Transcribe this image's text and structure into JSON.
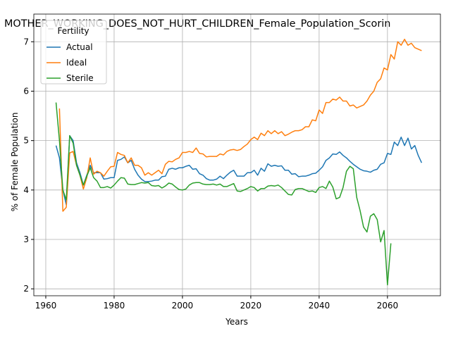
{
  "chart_data": {
    "type": "line",
    "title": "MOTHER_WORKING_DOES_NOT_HURT_CHILDREN_Female_Population_Scorin",
    "xlabel": "Years",
    "ylabel": "% of Female Population",
    "legend_title": "Fertility",
    "legend": "upper left",
    "grid": true,
    "x": [
      1963,
      1964,
      1965,
      1966,
      1967,
      1968,
      1969,
      1970,
      1971,
      1972,
      1973,
      1974,
      1975,
      1976,
      1977,
      1978,
      1979,
      1980,
      1981,
      1982,
      1983,
      1984,
      1985,
      1986,
      1987,
      1988,
      1989,
      1990,
      1991,
      1992,
      1993,
      1994,
      1995,
      1996,
      1997,
      1998,
      1999,
      2000,
      2001,
      2002,
      2003,
      2004,
      2005,
      2006,
      2007,
      2008,
      2009,
      2010,
      2011,
      2012,
      2013,
      2014,
      2015,
      2016,
      2017,
      2018,
      2019,
      2020,
      2021,
      2022,
      2023,
      2024,
      2025,
      2026,
      2027,
      2028,
      2029,
      2030,
      2031,
      2032,
      2033,
      2034,
      2035,
      2036,
      2037,
      2038,
      2039,
      2040,
      2041,
      2042,
      2043,
      2044,
      2045,
      2046,
      2047,
      2048,
      2049,
      2050,
      2051,
      2052,
      2053,
      2054,
      2055,
      2056,
      2057,
      2058,
      2059,
      2060,
      2061,
      2062,
      2063,
      2064,
      2065,
      2066,
      2067,
      2068,
      2069,
      2070
    ],
    "series": [
      {
        "name": "Actual",
        "color": "#1f77b4",
        "values": [
          4.9,
          4.65,
          4.0,
          3.7,
          5.1,
          5.0,
          4.55,
          4.35,
          4.1,
          4.3,
          4.5,
          4.35,
          4.35,
          4.35,
          4.22,
          4.23,
          4.25,
          4.25,
          4.6,
          4.62,
          4.67,
          4.55,
          4.6,
          4.42,
          4.3,
          4.22,
          4.17,
          4.17,
          4.18,
          4.2,
          4.2,
          4.27,
          4.28,
          4.42,
          4.44,
          4.42,
          4.45,
          4.45,
          4.48,
          4.5,
          4.42,
          4.43,
          4.33,
          4.3,
          4.23,
          4.2,
          4.2,
          4.22,
          4.28,
          4.23,
          4.3,
          4.36,
          4.4,
          4.28,
          4.28,
          4.28,
          4.35,
          4.35,
          4.4,
          4.3,
          4.44,
          4.38,
          4.53,
          4.48,
          4.5,
          4.48,
          4.49,
          4.4,
          4.4,
          4.32,
          4.33,
          4.27,
          4.28,
          4.28,
          4.3,
          4.33,
          4.34,
          4.4,
          4.47,
          4.6,
          4.65,
          4.73,
          4.72,
          4.77,
          4.7,
          4.65,
          4.58,
          4.52,
          4.47,
          4.42,
          4.39,
          4.38,
          4.36,
          4.4,
          4.42,
          4.52,
          4.55,
          4.74,
          4.72,
          4.97,
          4.9,
          5.07,
          4.9,
          5.05,
          4.83,
          4.9,
          4.7,
          4.55
        ]
      },
      {
        "name": "Ideal",
        "color": "#ff7f0e",
        "values": [
          null,
          5.65,
          3.57,
          3.65,
          4.75,
          4.78,
          4.5,
          4.3,
          4.02,
          4.25,
          4.65,
          4.32,
          4.38,
          4.35,
          4.28,
          4.38,
          4.47,
          4.48,
          4.76,
          4.72,
          4.7,
          4.55,
          4.65,
          4.5,
          4.5,
          4.45,
          4.3,
          4.35,
          4.3,
          4.35,
          4.4,
          4.33,
          4.52,
          4.58,
          4.57,
          4.62,
          4.65,
          4.76,
          4.76,
          4.78,
          4.76,
          4.85,
          4.74,
          4.73,
          4.67,
          4.68,
          4.68,
          4.68,
          4.73,
          4.71,
          4.78,
          4.81,
          4.82,
          4.8,
          4.82,
          4.88,
          4.93,
          5.02,
          5.07,
          5.02,
          5.15,
          5.1,
          5.2,
          5.14,
          5.2,
          5.14,
          5.18,
          5.1,
          5.13,
          5.17,
          5.2,
          5.2,
          5.22,
          5.28,
          5.28,
          5.42,
          5.4,
          5.62,
          5.55,
          5.77,
          5.77,
          5.84,
          5.82,
          5.88,
          5.8,
          5.8,
          5.7,
          5.72,
          5.66,
          5.69,
          5.72,
          5.8,
          5.92,
          6.0,
          6.18,
          6.25,
          6.47,
          6.43,
          6.74,
          6.65,
          7.0,
          6.93,
          7.05,
          6.93,
          6.97,
          6.88,
          6.85,
          6.82
        ]
      },
      {
        "name": "Sterile",
        "color": "#2ca02c",
        "values": [
          5.77,
          5.0,
          4.0,
          3.8,
          5.1,
          4.95,
          4.5,
          4.3,
          4.1,
          4.28,
          4.45,
          4.25,
          4.18,
          4.05,
          4.05,
          4.07,
          4.04,
          4.1,
          4.18,
          4.25,
          4.24,
          4.12,
          4.11,
          4.11,
          4.13,
          4.15,
          4.14,
          4.15,
          4.09,
          4.08,
          4.09,
          4.04,
          4.08,
          4.14,
          4.12,
          4.06,
          4.01,
          4.0,
          4.02,
          4.1,
          4.14,
          4.15,
          4.15,
          4.12,
          4.11,
          4.11,
          4.12,
          4.1,
          4.12,
          4.07,
          4.07,
          4.1,
          4.13,
          3.98,
          3.97,
          4.0,
          4.03,
          4.07,
          4.05,
          3.98,
          4.03,
          4.03,
          4.08,
          4.09,
          4.08,
          4.1,
          4.05,
          3.98,
          3.91,
          3.9,
          4.01,
          4.03,
          4.03,
          4.0,
          3.97,
          3.98,
          3.95,
          4.05,
          4.07,
          4.03,
          4.18,
          4.06,
          3.82,
          3.85,
          4.05,
          4.38,
          4.48,
          4.43,
          3.85,
          3.58,
          3.25,
          3.15,
          3.47,
          3.52,
          3.4,
          2.95,
          3.18,
          2.08,
          2.92,
          null,
          null,
          null,
          null,
          null,
          null,
          null,
          null,
          null
        ]
      }
    ],
    "xlim": [
      1956.5,
      2075.5
    ],
    "ylim": [
      1.86,
      7.56
    ],
    "xticks": [
      1960,
      1980,
      2000,
      2020,
      2040,
      2060
    ],
    "yticks": [
      2,
      3,
      4,
      5,
      6,
      7
    ]
  }
}
